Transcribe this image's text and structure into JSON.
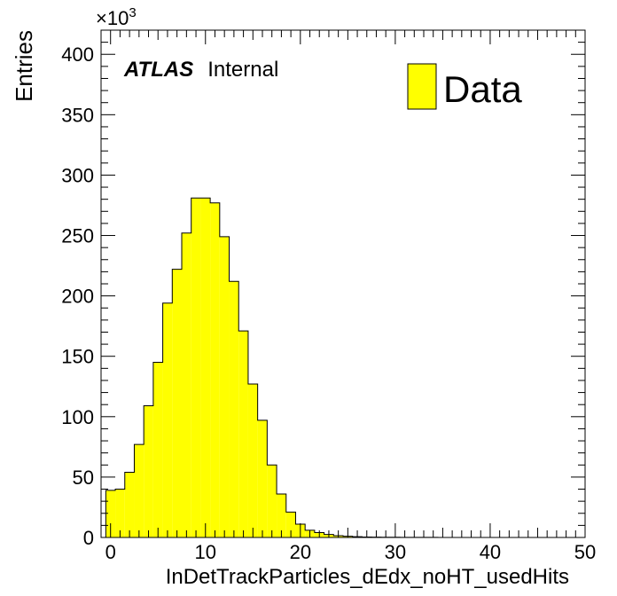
{
  "chart_data": {
    "type": "bar",
    "title": "",
    "xlabel": "InDetTrackParticles_dEdx_noHT_usedHits",
    "ylabel": "Entries",
    "y_multiplier_label": "×10",
    "y_multiplier_exponent": "3",
    "xlim": [
      -1,
      50
    ],
    "ylim": [
      0,
      420
    ],
    "x_ticks": [
      0,
      10,
      20,
      30,
      40,
      50
    ],
    "y_ticks": [
      0,
      50,
      100,
      150,
      200,
      250,
      300,
      350,
      400
    ],
    "bin_width": 1,
    "bin_edges_start": -0.5,
    "series": [
      {
        "name": "Data",
        "color": "#ffff00",
        "values": [
          39,
          40,
          54,
          77,
          109,
          145,
          194,
          222,
          252,
          281,
          281,
          277,
          249,
          212,
          171,
          127,
          97,
          60,
          36,
          21,
          11,
          6,
          4,
          2.5,
          1.5,
          1,
          0.6,
          0.4,
          0.3,
          0.2,
          0.15,
          0.1,
          0.1,
          0.05,
          0.05
        ]
      }
    ],
    "legend": {
      "position": "top-right",
      "label": "Data"
    },
    "annotation": {
      "bold": "ATLAS",
      "normal": "Internal"
    },
    "grid": false
  }
}
